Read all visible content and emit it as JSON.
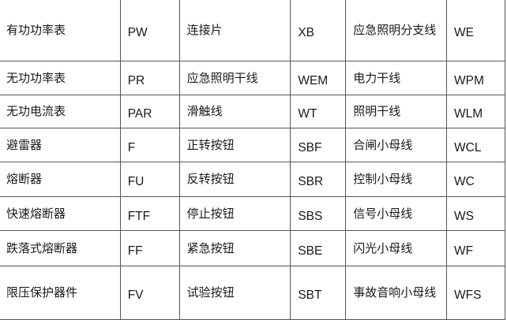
{
  "rows": [
    [
      "有功功率表",
      "PW",
      "连接片",
      "XB",
      "应急照明分支线",
      "WE"
    ],
    [
      "无功功率表",
      "PR",
      "应急照明干线",
      "WEM",
      "电力干线",
      "WPM"
    ],
    [
      "无功电流表",
      "PAR",
      "滑触线",
      "WT",
      "照明干线",
      "WLM"
    ],
    [
      "避雷器",
      "F",
      "正转按钮",
      "SBF",
      "合闸小母线",
      "WCL"
    ],
    [
      "熔断器",
      "FU",
      "反转按钮",
      "SBR",
      "控制小母线",
      "WC"
    ],
    [
      "快速熔断器",
      "FTF",
      "停止按钮",
      "SBS",
      "信号小母线",
      "WS"
    ],
    [
      "跌落式熔断器",
      "FF",
      "紧急按钮",
      "SBE",
      "闪光小母线",
      "WF"
    ],
    [
      "限压保护器件",
      "FV",
      "试验按钮",
      "SBT",
      "事故音响小母线",
      "WFS"
    ]
  ]
}
